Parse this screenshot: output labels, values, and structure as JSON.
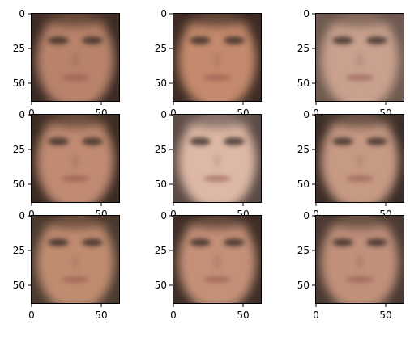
{
  "grid": {
    "rows": 3,
    "cols": 3
  },
  "axes": {
    "xticks": [
      "0",
      "50"
    ],
    "yticks": [
      "0",
      "25",
      "50"
    ]
  },
  "panels": [
    {
      "skin": "#b8836a",
      "bg": "#3a2a24",
      "hair": "#4a3428"
    },
    {
      "skin": "#c48a6d",
      "bg": "#3e2c24",
      "hair": "#3a2a22"
    },
    {
      "skin": "#c9a18e",
      "bg": "#6e5a50",
      "hair": "#6a564c"
    },
    {
      "skin": "#c08b72",
      "bg": "#3a2a22",
      "hair": "#4a3428"
    },
    {
      "skin": "#ddb8a6",
      "bg": "#5a4a44",
      "hair": "#6a5a54"
    },
    {
      "skin": "#c79a84",
      "bg": "#3a2c26",
      "hair": "#4a3a30"
    },
    {
      "skin": "#c08c70",
      "bg": "#4a3a30",
      "hair": "#4a3428"
    },
    {
      "skin": "#c49078",
      "bg": "#3e2e26",
      "hair": "#3a2a22"
    },
    {
      "skin": "#c0907a",
      "bg": "#4a3a32",
      "hair": "#4a3830"
    }
  ]
}
